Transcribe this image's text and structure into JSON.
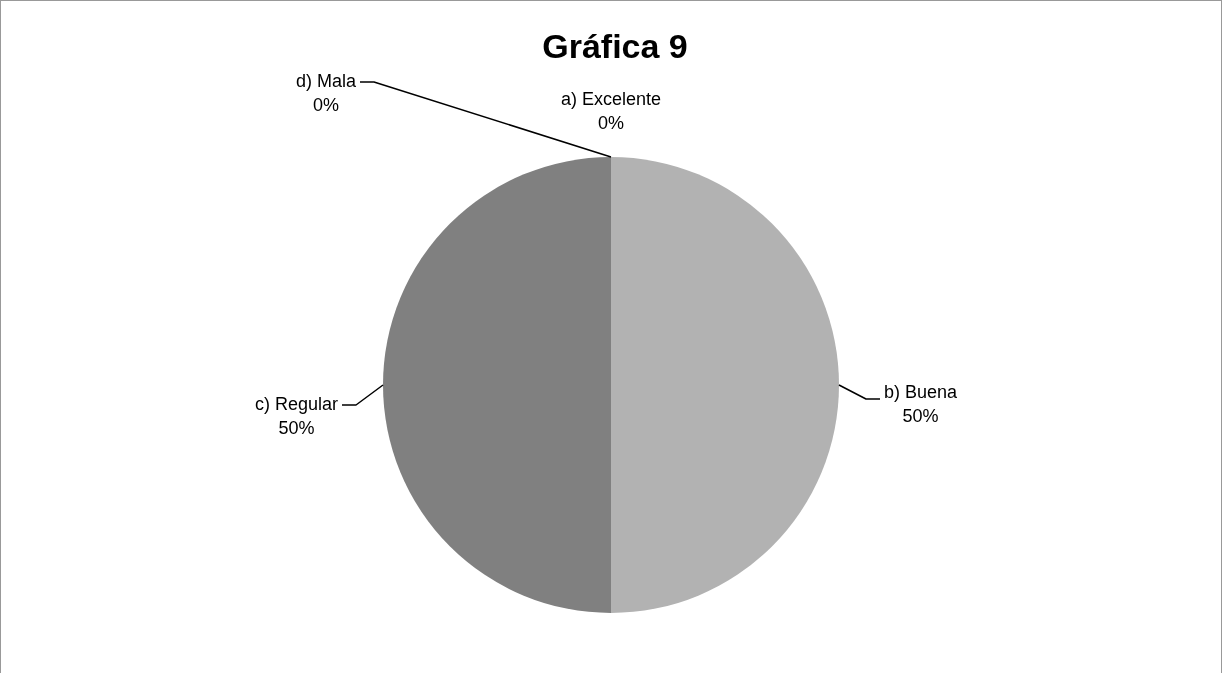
{
  "chart_data": {
    "type": "pie",
    "title": "Gráfica 9",
    "categories": [
      "a) Excelente",
      "b) Buena",
      "c) Regular",
      "d) Mala"
    ],
    "values": [
      0,
      50,
      50,
      0
    ],
    "colors": [
      "#d9d9d9",
      "#b2b2b2",
      "#808080",
      "#595959"
    ],
    "value_labels": [
      "0%",
      "50%",
      "50%",
      "0%"
    ],
    "legend": false
  }
}
